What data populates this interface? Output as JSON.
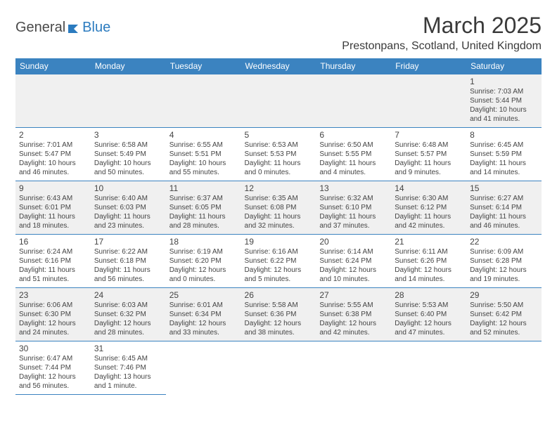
{
  "brand": {
    "part1": "General",
    "part2": "Blue"
  },
  "title": "March 2025",
  "location": "Prestonpans, Scotland, United Kingdom",
  "colors": {
    "header_bg": "#3b83c0",
    "header_fg": "#ffffff",
    "alt_row_bg": "#f0f0f0",
    "border": "#3b83c0",
    "text": "#333333",
    "brand_blue": "#2b7bbf"
  },
  "day_headers": [
    "Sunday",
    "Monday",
    "Tuesday",
    "Wednesday",
    "Thursday",
    "Friday",
    "Saturday"
  ],
  "weeks": [
    [
      null,
      null,
      null,
      null,
      null,
      null,
      {
        "n": "1",
        "sr": "Sunrise: 7:03 AM",
        "ss": "Sunset: 5:44 PM",
        "dl1": "Daylight: 10 hours",
        "dl2": "and 41 minutes."
      }
    ],
    [
      {
        "n": "2",
        "sr": "Sunrise: 7:01 AM",
        "ss": "Sunset: 5:47 PM",
        "dl1": "Daylight: 10 hours",
        "dl2": "and 46 minutes."
      },
      {
        "n": "3",
        "sr": "Sunrise: 6:58 AM",
        "ss": "Sunset: 5:49 PM",
        "dl1": "Daylight: 10 hours",
        "dl2": "and 50 minutes."
      },
      {
        "n": "4",
        "sr": "Sunrise: 6:55 AM",
        "ss": "Sunset: 5:51 PM",
        "dl1": "Daylight: 10 hours",
        "dl2": "and 55 minutes."
      },
      {
        "n": "5",
        "sr": "Sunrise: 6:53 AM",
        "ss": "Sunset: 5:53 PM",
        "dl1": "Daylight: 11 hours",
        "dl2": "and 0 minutes."
      },
      {
        "n": "6",
        "sr": "Sunrise: 6:50 AM",
        "ss": "Sunset: 5:55 PM",
        "dl1": "Daylight: 11 hours",
        "dl2": "and 4 minutes."
      },
      {
        "n": "7",
        "sr": "Sunrise: 6:48 AM",
        "ss": "Sunset: 5:57 PM",
        "dl1": "Daylight: 11 hours",
        "dl2": "and 9 minutes."
      },
      {
        "n": "8",
        "sr": "Sunrise: 6:45 AM",
        "ss": "Sunset: 5:59 PM",
        "dl1": "Daylight: 11 hours",
        "dl2": "and 14 minutes."
      }
    ],
    [
      {
        "n": "9",
        "sr": "Sunrise: 6:43 AM",
        "ss": "Sunset: 6:01 PM",
        "dl1": "Daylight: 11 hours",
        "dl2": "and 18 minutes."
      },
      {
        "n": "10",
        "sr": "Sunrise: 6:40 AM",
        "ss": "Sunset: 6:03 PM",
        "dl1": "Daylight: 11 hours",
        "dl2": "and 23 minutes."
      },
      {
        "n": "11",
        "sr": "Sunrise: 6:37 AM",
        "ss": "Sunset: 6:05 PM",
        "dl1": "Daylight: 11 hours",
        "dl2": "and 28 minutes."
      },
      {
        "n": "12",
        "sr": "Sunrise: 6:35 AM",
        "ss": "Sunset: 6:08 PM",
        "dl1": "Daylight: 11 hours",
        "dl2": "and 32 minutes."
      },
      {
        "n": "13",
        "sr": "Sunrise: 6:32 AM",
        "ss": "Sunset: 6:10 PM",
        "dl1": "Daylight: 11 hours",
        "dl2": "and 37 minutes."
      },
      {
        "n": "14",
        "sr": "Sunrise: 6:30 AM",
        "ss": "Sunset: 6:12 PM",
        "dl1": "Daylight: 11 hours",
        "dl2": "and 42 minutes."
      },
      {
        "n": "15",
        "sr": "Sunrise: 6:27 AM",
        "ss": "Sunset: 6:14 PM",
        "dl1": "Daylight: 11 hours",
        "dl2": "and 46 minutes."
      }
    ],
    [
      {
        "n": "16",
        "sr": "Sunrise: 6:24 AM",
        "ss": "Sunset: 6:16 PM",
        "dl1": "Daylight: 11 hours",
        "dl2": "and 51 minutes."
      },
      {
        "n": "17",
        "sr": "Sunrise: 6:22 AM",
        "ss": "Sunset: 6:18 PM",
        "dl1": "Daylight: 11 hours",
        "dl2": "and 56 minutes."
      },
      {
        "n": "18",
        "sr": "Sunrise: 6:19 AM",
        "ss": "Sunset: 6:20 PM",
        "dl1": "Daylight: 12 hours",
        "dl2": "and 0 minutes."
      },
      {
        "n": "19",
        "sr": "Sunrise: 6:16 AM",
        "ss": "Sunset: 6:22 PM",
        "dl1": "Daylight: 12 hours",
        "dl2": "and 5 minutes."
      },
      {
        "n": "20",
        "sr": "Sunrise: 6:14 AM",
        "ss": "Sunset: 6:24 PM",
        "dl1": "Daylight: 12 hours",
        "dl2": "and 10 minutes."
      },
      {
        "n": "21",
        "sr": "Sunrise: 6:11 AM",
        "ss": "Sunset: 6:26 PM",
        "dl1": "Daylight: 12 hours",
        "dl2": "and 14 minutes."
      },
      {
        "n": "22",
        "sr": "Sunrise: 6:09 AM",
        "ss": "Sunset: 6:28 PM",
        "dl1": "Daylight: 12 hours",
        "dl2": "and 19 minutes."
      }
    ],
    [
      {
        "n": "23",
        "sr": "Sunrise: 6:06 AM",
        "ss": "Sunset: 6:30 PM",
        "dl1": "Daylight: 12 hours",
        "dl2": "and 24 minutes."
      },
      {
        "n": "24",
        "sr": "Sunrise: 6:03 AM",
        "ss": "Sunset: 6:32 PM",
        "dl1": "Daylight: 12 hours",
        "dl2": "and 28 minutes."
      },
      {
        "n": "25",
        "sr": "Sunrise: 6:01 AM",
        "ss": "Sunset: 6:34 PM",
        "dl1": "Daylight: 12 hours",
        "dl2": "and 33 minutes."
      },
      {
        "n": "26",
        "sr": "Sunrise: 5:58 AM",
        "ss": "Sunset: 6:36 PM",
        "dl1": "Daylight: 12 hours",
        "dl2": "and 38 minutes."
      },
      {
        "n": "27",
        "sr": "Sunrise: 5:55 AM",
        "ss": "Sunset: 6:38 PM",
        "dl1": "Daylight: 12 hours",
        "dl2": "and 42 minutes."
      },
      {
        "n": "28",
        "sr": "Sunrise: 5:53 AM",
        "ss": "Sunset: 6:40 PM",
        "dl1": "Daylight: 12 hours",
        "dl2": "and 47 minutes."
      },
      {
        "n": "29",
        "sr": "Sunrise: 5:50 AM",
        "ss": "Sunset: 6:42 PM",
        "dl1": "Daylight: 12 hours",
        "dl2": "and 52 minutes."
      }
    ],
    [
      {
        "n": "30",
        "sr": "Sunrise: 6:47 AM",
        "ss": "Sunset: 7:44 PM",
        "dl1": "Daylight: 12 hours",
        "dl2": "and 56 minutes."
      },
      {
        "n": "31",
        "sr": "Sunrise: 6:45 AM",
        "ss": "Sunset: 7:46 PM",
        "dl1": "Daylight: 13 hours",
        "dl2": "and 1 minute."
      },
      null,
      null,
      null,
      null,
      null
    ]
  ]
}
